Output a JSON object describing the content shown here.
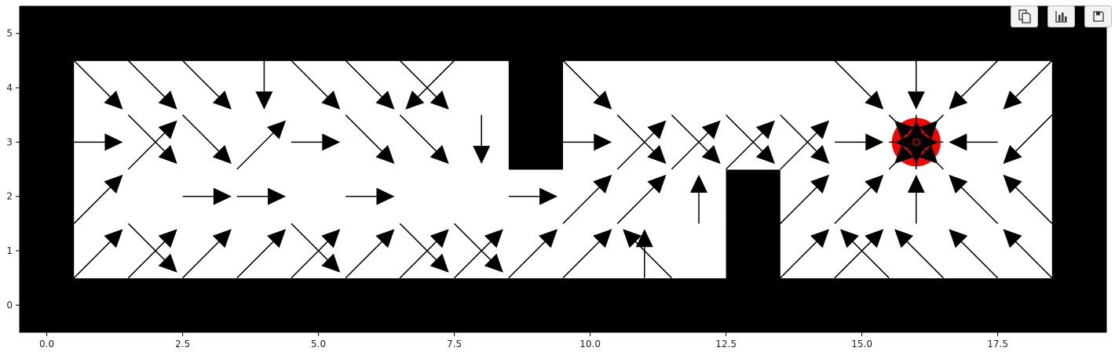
{
  "chart_data": {
    "type": "quiver",
    "xlim": [
      -0.5,
      19.5
    ],
    "ylim": [
      -0.5,
      5.5
    ],
    "xticks": [
      0.0,
      2.5,
      5.0,
      7.5,
      10.0,
      12.5,
      15.0,
      17.5
    ],
    "xtick_labels": [
      "0.0",
      "2.5",
      "5.0",
      "7.5",
      "10.0",
      "12.5",
      "15.0",
      "17.5"
    ],
    "yticks": [
      0,
      1,
      2,
      3,
      4,
      5
    ],
    "ytick_labels": [
      "0",
      "1",
      "2",
      "3",
      "4",
      "5"
    ],
    "grid": false,
    "map": {
      "description_of_cells": "1 = wall (black), 0 = free (white); row index = y",
      "rows": [
        [
          1,
          1,
          1,
          1,
          1,
          1,
          1,
          1,
          1,
          1,
          1,
          1,
          1,
          1,
          1,
          1,
          1,
          1,
          1,
          1
        ],
        [
          1,
          0,
          0,
          0,
          0,
          0,
          0,
          0,
          0,
          0,
          0,
          0,
          0,
          1,
          0,
          0,
          0,
          0,
          0,
          1
        ],
        [
          1,
          0,
          0,
          0,
          0,
          0,
          0,
          0,
          0,
          0,
          0,
          0,
          0,
          1,
          0,
          0,
          0,
          0,
          0,
          1
        ],
        [
          1,
          0,
          0,
          0,
          0,
          0,
          0,
          0,
          0,
          1,
          0,
          0,
          0,
          0,
          0,
          0,
          0,
          0,
          0,
          1
        ],
        [
          1,
          0,
          0,
          0,
          0,
          0,
          0,
          0,
          0,
          1,
          0,
          0,
          0,
          0,
          0,
          0,
          0,
          0,
          0,
          1
        ],
        [
          1,
          1,
          1,
          1,
          1,
          1,
          1,
          1,
          1,
          1,
          1,
          1,
          1,
          1,
          1,
          1,
          1,
          1,
          1,
          1
        ]
      ]
    },
    "goal": {
      "x": 16,
      "y": 3,
      "color": "#ff0000"
    },
    "arrow_color": "#000000",
    "arrows": [
      {
        "x": 1,
        "y": 1,
        "a": "NE"
      },
      {
        "x": 1,
        "y": 2,
        "a": "NE"
      },
      {
        "x": 1,
        "y": 3,
        "a": "E"
      },
      {
        "x": 1,
        "y": 4,
        "a": "SE"
      },
      {
        "x": 2,
        "y": 1,
        "a": [
          "NE",
          "SE"
        ]
      },
      {
        "x": 2,
        "y": 3,
        "a": [
          "NE",
          "SE"
        ]
      },
      {
        "x": 2,
        "y": 4,
        "a": "SE"
      },
      {
        "x": 3,
        "y": 1,
        "a": "NE"
      },
      {
        "x": 3,
        "y": 2,
        "a": "E"
      },
      {
        "x": 3,
        "y": 3,
        "a": "SE"
      },
      {
        "x": 3,
        "y": 4,
        "a": "SE"
      },
      {
        "x": 4,
        "y": 1,
        "a": "NE"
      },
      {
        "x": 4,
        "y": 2,
        "a": "E"
      },
      {
        "x": 4,
        "y": 3,
        "a": "NE"
      },
      {
        "x": 4,
        "y": 4,
        "a": "S"
      },
      {
        "x": 5,
        "y": 1,
        "a": [
          "NE",
          "SE"
        ]
      },
      {
        "x": 5,
        "y": 3,
        "a": "E"
      },
      {
        "x": 5,
        "y": 4,
        "a": "SE"
      },
      {
        "x": 6,
        "y": 1,
        "a": "NE"
      },
      {
        "x": 6,
        "y": 2,
        "a": "E"
      },
      {
        "x": 6,
        "y": 3,
        "a": "SE"
      },
      {
        "x": 6,
        "y": 4,
        "a": "SE"
      },
      {
        "x": 7,
        "y": 1,
        "a": [
          "NE",
          "SE"
        ]
      },
      {
        "x": 7,
        "y": 3,
        "a": "SE"
      },
      {
        "x": 7,
        "y": 4,
        "a": [
          "SE",
          "SW"
        ]
      },
      {
        "x": 8,
        "y": 1,
        "a": [
          "NE",
          "SE"
        ]
      },
      {
        "x": 8,
        "y": 3,
        "a": "S"
      },
      {
        "x": 9,
        "y": 1,
        "a": "NE"
      },
      {
        "x": 9,
        "y": 2,
        "a": "E"
      },
      {
        "x": 10,
        "y": 1,
        "a": "NE"
      },
      {
        "x": 10,
        "y": 2,
        "a": "NE"
      },
      {
        "x": 10,
        "y": 3,
        "a": "E"
      },
      {
        "x": 10,
        "y": 4,
        "a": "SE"
      },
      {
        "x": 11,
        "y": 1,
        "a": [
          "N",
          "NW"
        ]
      },
      {
        "x": 11,
        "y": 2,
        "a": "NE"
      },
      {
        "x": 11,
        "y": 3,
        "a": [
          "NE",
          "SE"
        ]
      },
      {
        "x": 12,
        "y": 2,
        "a": "N"
      },
      {
        "x": 12,
        "y": 3,
        "a": [
          "NE",
          "SE"
        ]
      },
      {
        "x": 13,
        "y": 3,
        "a": [
          "NE",
          "SE"
        ]
      },
      {
        "x": 14,
        "y": 1,
        "a": "NE"
      },
      {
        "x": 14,
        "y": 2,
        "a": "NE"
      },
      {
        "x": 14,
        "y": 3,
        "a": [
          "NE",
          "SE"
        ]
      },
      {
        "x": 15,
        "y": 1,
        "a": [
          "NE",
          "NW"
        ]
      },
      {
        "x": 15,
        "y": 2,
        "a": "NE"
      },
      {
        "x": 15,
        "y": 3,
        "a": "E"
      },
      {
        "x": 15,
        "y": 4,
        "a": "SE"
      },
      {
        "x": 16,
        "y": 1,
        "a": "NW"
      },
      {
        "x": 16,
        "y": 2,
        "a": "N"
      },
      {
        "x": 16,
        "y": 4,
        "a": "S"
      },
      {
        "x": 17,
        "y": 1,
        "a": "NW"
      },
      {
        "x": 17,
        "y": 2,
        "a": "NW"
      },
      {
        "x": 17,
        "y": 3,
        "a": "W"
      },
      {
        "x": 17,
        "y": 4,
        "a": "SW"
      },
      {
        "x": 18,
        "y": 1,
        "a": "NW"
      },
      {
        "x": 18,
        "y": 2,
        "a": "NW"
      },
      {
        "x": 18,
        "y": 3,
        "a": "SW"
      },
      {
        "x": 18,
        "y": 4,
        "a": "SW"
      }
    ]
  },
  "toolbar": {
    "buttons": [
      {
        "name": "copy-button",
        "icon": "copy-icon"
      },
      {
        "name": "chart-button",
        "icon": "bar-chart-icon"
      },
      {
        "name": "save-button",
        "icon": "save-icon"
      }
    ]
  }
}
